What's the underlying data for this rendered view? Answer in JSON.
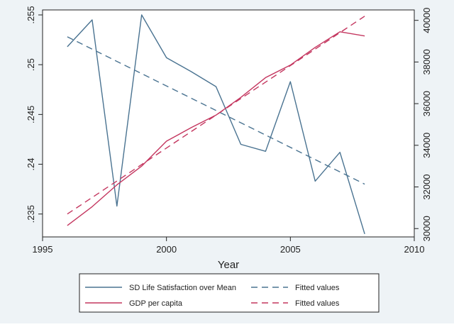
{
  "chart_data": {
    "type": "line",
    "title": "",
    "xlabel": "Year",
    "ylabel_left": "",
    "ylabel_right": "",
    "x_ticks": [
      1995,
      2000,
      2005,
      2010
    ],
    "x_tick_labels": [
      "1995",
      "2000",
      "2005",
      "2010"
    ],
    "xlim": [
      1995,
      2010
    ],
    "y_left_ticks": [
      0.235,
      0.24,
      0.245,
      0.25,
      0.255
    ],
    "y_left_tick_labels": [
      ".235",
      ".24",
      ".245",
      ".25",
      ".255"
    ],
    "y_left_lim": [
      0.2327,
      0.2555
    ],
    "y_right_ticks": [
      30000,
      32000,
      34000,
      36000,
      38000,
      40000
    ],
    "y_right_tick_labels": [
      "30000",
      "32000",
      "34000",
      "36000",
      "38000",
      "40000"
    ],
    "y_right_lim": [
      29600,
      40500
    ],
    "grid": false,
    "legend_position": "bottom",
    "series": [
      {
        "name": "SD Life Satisfaction over Mean",
        "axis": "left",
        "style": "solid",
        "color": "#4a7391",
        "x": [
          1996,
          1997,
          1998,
          1999,
          2000,
          2001,
          2002,
          2003,
          2004,
          2005,
          2006,
          2007,
          2008
        ],
        "y": [
          0.2518,
          0.2545,
          0.2358,
          0.255,
          0.2507,
          0.2493,
          0.2478,
          0.242,
          0.2413,
          0.2483,
          0.2383,
          0.2412,
          0.233
        ]
      },
      {
        "name": "Fitted values",
        "axis": "left",
        "style": "dashed",
        "color": "#4a7391",
        "x": [
          1996,
          2008
        ],
        "y": [
          0.2528,
          0.238
        ]
      },
      {
        "name": "GDP per capita",
        "axis": "right",
        "style": "solid",
        "color": "#c4365f",
        "x": [
          1996,
          1997,
          1998,
          1999,
          2000,
          2001,
          2002,
          2003,
          2004,
          2005,
          2006,
          2007,
          2008
        ],
        "y": [
          30150,
          31050,
          32100,
          33000,
          34200,
          34850,
          35450,
          36300,
          37250,
          37850,
          38700,
          39450,
          39250
        ]
      },
      {
        "name": "Fitted values",
        "axis": "right",
        "style": "dashed",
        "color": "#c4365f",
        "x": [
          1996,
          2008
        ],
        "y": [
          30700,
          40200
        ]
      }
    ],
    "legend": [
      {
        "series_index": 0,
        "label": "SD Life Satisfaction over Mean"
      },
      {
        "series_index": 1,
        "label": "Fitted values"
      },
      {
        "series_index": 2,
        "label": "GDP per capita"
      },
      {
        "series_index": 3,
        "label": "Fitted values"
      }
    ],
    "colors": {
      "background": "#eef3f6",
      "plot_background": "#ffffff",
      "axis": "#222222"
    }
  }
}
